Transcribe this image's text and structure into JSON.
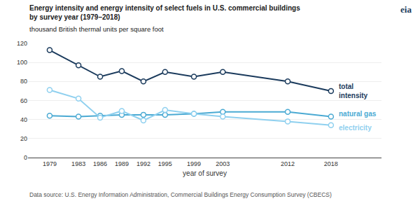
{
  "chart_data": {
    "type": "line",
    "title": [
      "Energy intensity and energy intensity of select fuels in U.S. commercial buildings",
      "by survey year (1979–2018)"
    ],
    "subtitle": "thousand British thermal units per square foot",
    "xlabel": "year of survey",
    "x": [
      1979,
      1983,
      1986,
      1989,
      1992,
      1995,
      1999,
      2003,
      2012,
      2018
    ],
    "series": [
      {
        "name": "total\nintensity",
        "color": "#1a3a5c",
        "values": [
          113,
          97,
          85,
          91,
          80,
          90,
          85,
          90,
          80,
          70
        ]
      },
      {
        "name": "natural gas",
        "color": "#4baad3",
        "values": [
          44,
          43,
          44,
          45,
          45,
          45,
          46,
          48,
          48,
          43
        ]
      },
      {
        "name": "electricity",
        "color": "#8fd0ef",
        "values": [
          71,
          62,
          42,
          49,
          39,
          50,
          46,
          43,
          38,
          34
        ]
      }
    ],
    "xlim": [
      1976,
      2025
    ],
    "xticks": [
      1979,
      1983,
      1986,
      1989,
      1992,
      1995,
      1999,
      2003,
      2012,
      2018
    ],
    "ylim": [
      0,
      120
    ],
    "yticks": [
      0,
      20,
      40,
      60,
      80,
      100,
      120
    ],
    "grid": "y",
    "marker": "circle",
    "annotations": [
      "eia",
      "Data source: U.S. Energy Information Administration, Commercial Buildings Energy Consumption Survey (CBECS)"
    ]
  }
}
